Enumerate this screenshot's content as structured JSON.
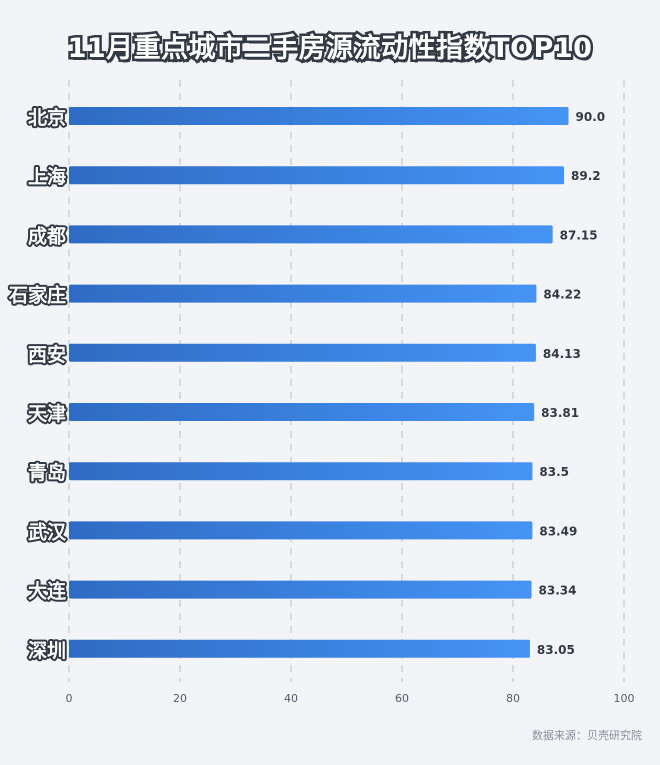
{
  "title": "11月重点城市二手房源流动性指数TOP10",
  "source": "数据来源：贝壳研究院",
  "colors": {
    "bar_start": "#2f6bc4",
    "bar_end": "#4594f5",
    "background": "#f2f4f8",
    "grid": "#c5c9d0",
    "label_fill": "#ffffff",
    "label_stroke": "#333a44",
    "value_text": "#333a44",
    "tick_text": "#555b66"
  },
  "chart_data": {
    "type": "bar",
    "orientation": "horizontal",
    "categories": [
      "北京",
      "上海",
      "成都",
      "石家庄",
      "西安",
      "天津",
      "青岛",
      "武汉",
      "大连",
      "深圳"
    ],
    "values": [
      90.0,
      89.2,
      87.15,
      84.22,
      84.13,
      83.81,
      83.5,
      83.49,
      83.34,
      83.05
    ],
    "value_labels": [
      "90.0",
      "89.2",
      "87.15",
      "84.22",
      "84.13",
      "83.81",
      "83.5",
      "83.49",
      "83.34",
      "83.05"
    ],
    "xlim": [
      0,
      100
    ],
    "xticks": [
      "0",
      "20",
      "40",
      "60",
      "80",
      "100"
    ],
    "grid": true,
    "grid_style": "dashed vertical"
  }
}
